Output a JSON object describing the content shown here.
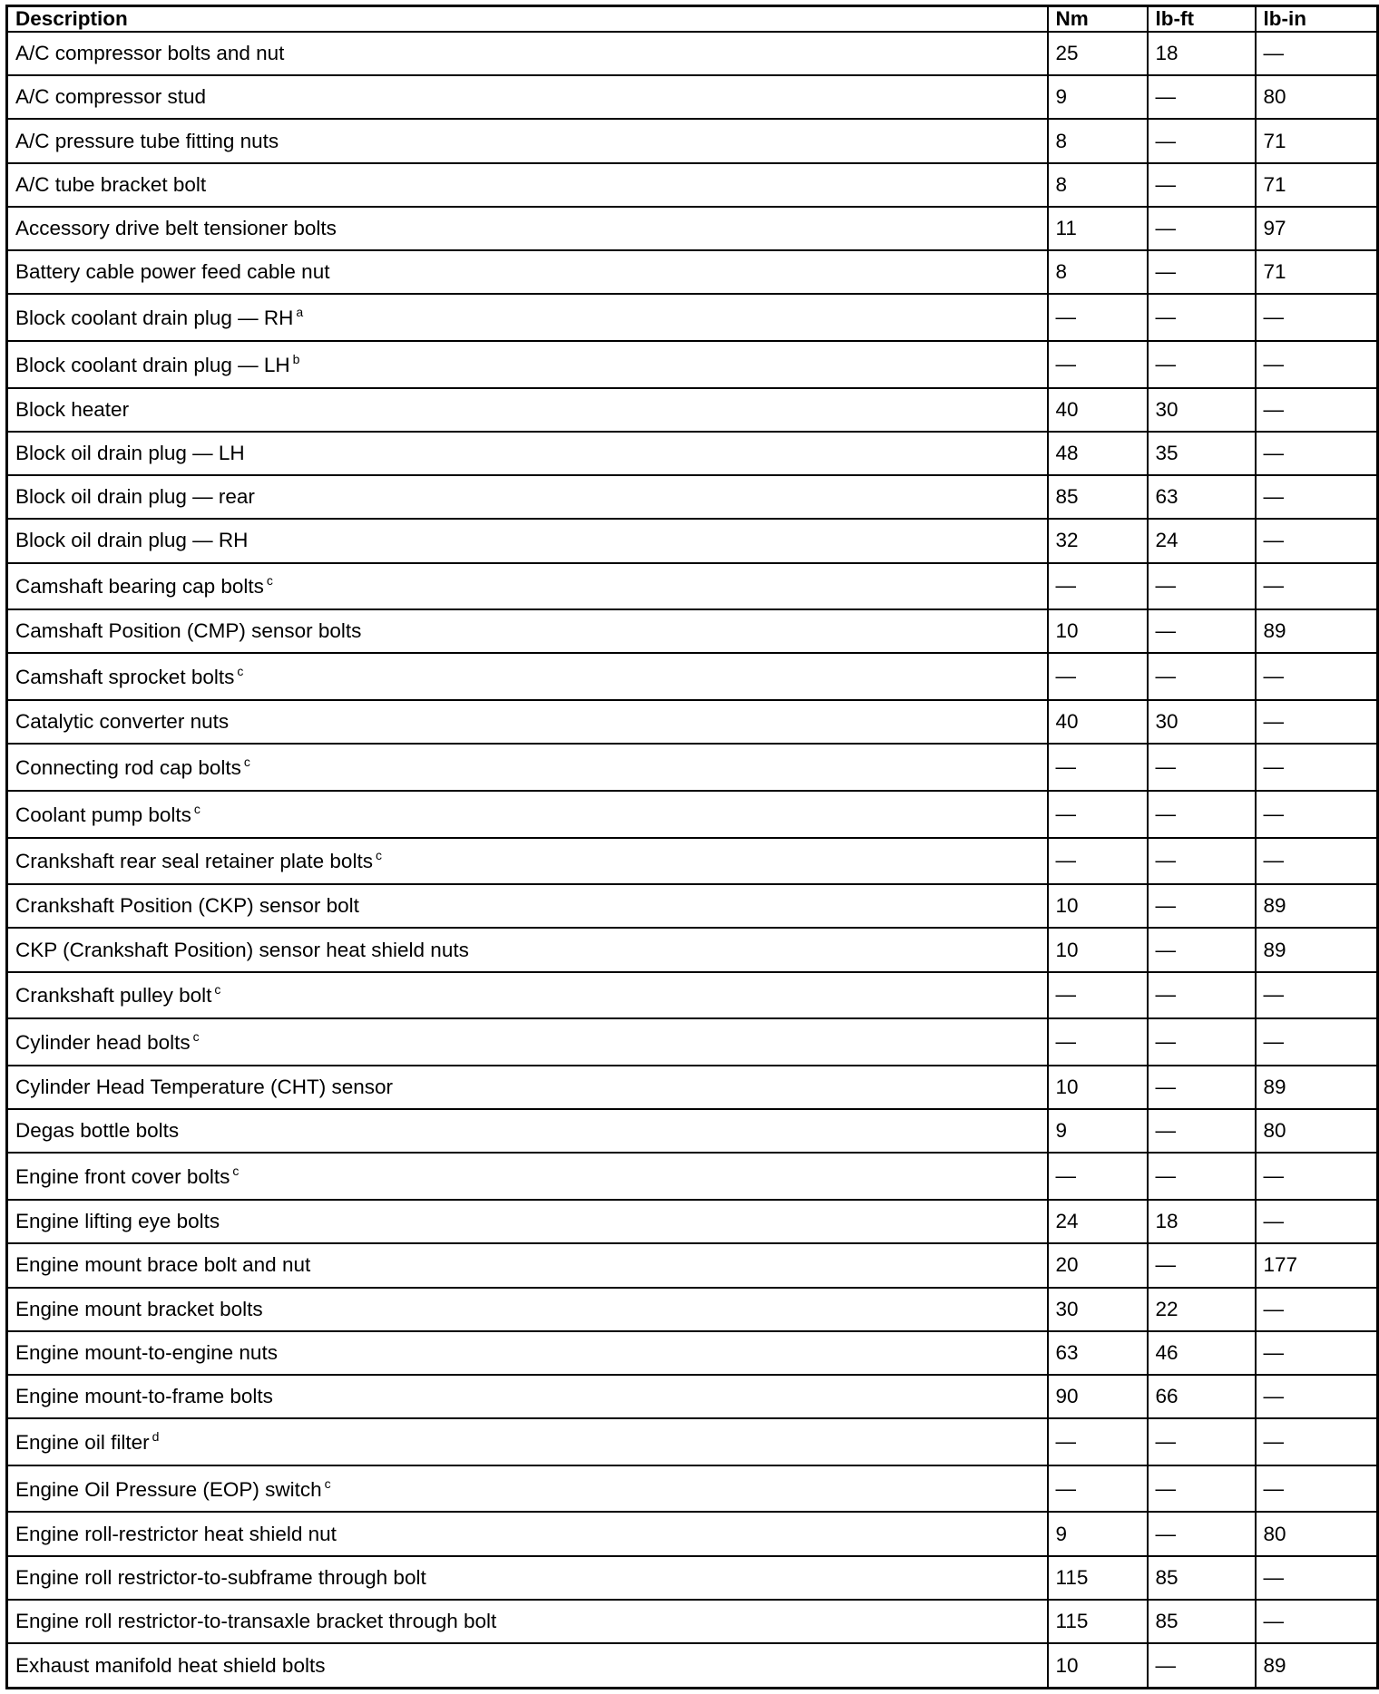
{
  "table": {
    "headers": [
      "Description",
      "Nm",
      "lb-ft",
      "lb-in"
    ],
    "rows": [
      {
        "desc": "A/C compressor bolts and nut",
        "sup": "",
        "nm": "25",
        "lbft": "18",
        "lbin": "—"
      },
      {
        "desc": "A/C compressor stud",
        "sup": "",
        "nm": "9",
        "lbft": "—",
        "lbin": "80"
      },
      {
        "desc": "A/C pressure tube fitting nuts",
        "sup": "",
        "nm": "8",
        "lbft": "—",
        "lbin": "71"
      },
      {
        "desc": "A/C tube bracket bolt",
        "sup": "",
        "nm": "8",
        "lbft": "—",
        "lbin": "71"
      },
      {
        "desc": "Accessory drive belt tensioner bolts",
        "sup": "",
        "nm": "11",
        "lbft": "—",
        "lbin": "97"
      },
      {
        "desc": "Battery cable power feed cable nut",
        "sup": "",
        "nm": "8",
        "lbft": "—",
        "lbin": "71"
      },
      {
        "desc": "Block coolant drain plug — RH",
        "sup": "a",
        "nm": "—",
        "lbft": "—",
        "lbin": "—"
      },
      {
        "desc": "Block coolant drain plug — LH",
        "sup": "b",
        "nm": "—",
        "lbft": "—",
        "lbin": "—"
      },
      {
        "desc": "Block heater",
        "sup": "",
        "nm": "40",
        "lbft": "30",
        "lbin": "—"
      },
      {
        "desc": "Block oil drain plug — LH",
        "sup": "",
        "nm": "48",
        "lbft": "35",
        "lbin": "—"
      },
      {
        "desc": "Block oil drain plug — rear",
        "sup": "",
        "nm": "85",
        "lbft": "63",
        "lbin": "—"
      },
      {
        "desc": "Block oil drain plug — RH",
        "sup": "",
        "nm": "32",
        "lbft": "24",
        "lbin": "—"
      },
      {
        "desc": "Camshaft bearing cap bolts",
        "sup": "c",
        "nm": "—",
        "lbft": "—",
        "lbin": "—"
      },
      {
        "desc": "Camshaft Position (CMP) sensor bolts",
        "sup": "",
        "nm": "10",
        "lbft": "—",
        "lbin": "89"
      },
      {
        "desc": "Camshaft sprocket bolts",
        "sup": "c",
        "nm": "—",
        "lbft": "—",
        "lbin": "—"
      },
      {
        "desc": "Catalytic converter nuts",
        "sup": "",
        "nm": "40",
        "lbft": "30",
        "lbin": "—"
      },
      {
        "desc": "Connecting rod cap bolts",
        "sup": "c",
        "nm": "—",
        "lbft": "—",
        "lbin": "—"
      },
      {
        "desc": "Coolant pump bolts",
        "sup": "c",
        "nm": "—",
        "lbft": "—",
        "lbin": "—"
      },
      {
        "desc": "Crankshaft rear seal retainer plate bolts",
        "sup": "c",
        "nm": "—",
        "lbft": "—",
        "lbin": "—"
      },
      {
        "desc": "Crankshaft Position (CKP) sensor bolt",
        "sup": "",
        "nm": "10",
        "lbft": "—",
        "lbin": "89"
      },
      {
        "desc": "CKP (Crankshaft Position) sensor heat shield nuts",
        "sup": "",
        "nm": "10",
        "lbft": "—",
        "lbin": "89"
      },
      {
        "desc": "Crankshaft pulley bolt",
        "sup": "c",
        "nm": "—",
        "lbft": "—",
        "lbin": "—"
      },
      {
        "desc": "Cylinder head bolts",
        "sup": "c",
        "nm": "—",
        "lbft": "—",
        "lbin": "—"
      },
      {
        "desc": "Cylinder Head Temperature (CHT) sensor",
        "sup": "",
        "nm": "10",
        "lbft": "—",
        "lbin": "89"
      },
      {
        "desc": "Degas bottle bolts",
        "sup": "",
        "nm": "9",
        "lbft": "—",
        "lbin": "80"
      },
      {
        "desc": "Engine front cover bolts",
        "sup": "c",
        "nm": "—",
        "lbft": "—",
        "lbin": "—"
      },
      {
        "desc": "Engine lifting eye bolts",
        "sup": "",
        "nm": "24",
        "lbft": "18",
        "lbin": "—"
      },
      {
        "desc": "Engine mount brace bolt and nut",
        "sup": "",
        "nm": "20",
        "lbft": "—",
        "lbin": "177"
      },
      {
        "desc": "Engine mount bracket bolts",
        "sup": "",
        "nm": "30",
        "lbft": "22",
        "lbin": "—"
      },
      {
        "desc": "Engine mount-to-engine nuts",
        "sup": "",
        "nm": "63",
        "lbft": "46",
        "lbin": "—"
      },
      {
        "desc": "Engine mount-to-frame bolts",
        "sup": "",
        "nm": "90",
        "lbft": "66",
        "lbin": "—"
      },
      {
        "desc": "Engine oil filter",
        "sup": "d",
        "nm": "—",
        "lbft": "—",
        "lbin": "—"
      },
      {
        "desc": "Engine Oil Pressure (EOP) switch",
        "sup": "c",
        "nm": "—",
        "lbft": "—",
        "lbin": "—"
      },
      {
        "desc": "Engine roll-restrictor heat shield nut",
        "sup": "",
        "nm": "9",
        "lbft": "—",
        "lbin": "80"
      },
      {
        "desc": "Engine roll restrictor-to-subframe through bolt",
        "sup": "",
        "nm": "115",
        "lbft": "85",
        "lbin": "—"
      },
      {
        "desc": "Engine roll restrictor-to-transaxle bracket through bolt",
        "sup": "",
        "nm": "115",
        "lbft": "85",
        "lbin": "—"
      },
      {
        "desc": "Exhaust manifold heat shield bolts",
        "sup": "",
        "nm": "10",
        "lbft": "—",
        "lbin": "89"
      }
    ]
  }
}
